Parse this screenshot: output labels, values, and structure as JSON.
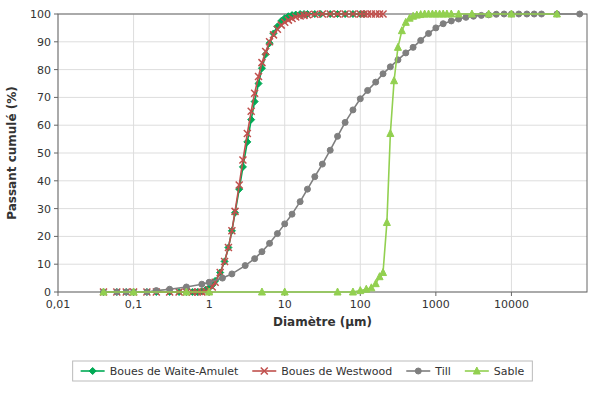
{
  "chart_data": {
    "type": "line",
    "xlabel": "Diamètre (μm)",
    "ylabel": "Passant cumulé (%)",
    "log": "x",
    "xlim": [
      0.01,
      100000
    ],
    "ylim": [
      0,
      100
    ],
    "xticks": [
      {
        "value": 0.01,
        "label": "0,01"
      },
      {
        "value": 0.1,
        "label": "0,1"
      },
      1,
      10,
      100,
      1000,
      10000
    ],
    "yticks": [
      0,
      10,
      20,
      30,
      40,
      50,
      60,
      70,
      80,
      90,
      100
    ],
    "grid": true,
    "legend": "bottom",
    "series": [
      {
        "name": "Boues de Waite-Amulet",
        "color": "#00AA55",
        "marker": "diamond",
        "x": [
          0.04,
          0.06,
          0.08,
          0.1,
          0.15,
          0.2,
          0.3,
          0.4,
          0.5,
          0.6,
          0.7,
          0.8,
          0.9,
          1.0,
          1.1,
          1.2,
          1.4,
          1.6,
          1.8,
          2.0,
          2.2,
          2.5,
          2.8,
          3.2,
          3.6,
          4.0,
          4.5,
          5.0,
          5.6,
          6.3,
          7.1,
          8.0,
          9.0,
          10.0,
          11.2,
          12.5,
          14.0,
          16.0,
          18.0,
          20.0,
          25.0,
          30.0,
          40.0,
          50.0,
          63.0,
          80.0,
          100.0,
          112.0
        ],
        "values": [
          0.0,
          0.0,
          0.0,
          0.0,
          0.0,
          0.0,
          0.0,
          0.0,
          0.0,
          0.0,
          0.0,
          0.3,
          0.8,
          1.5,
          2.5,
          4.0,
          7.0,
          11.0,
          16.0,
          22.0,
          28.5,
          37.0,
          45.0,
          54.0,
          62.0,
          68.5,
          75.0,
          80.5,
          85.5,
          89.5,
          93.0,
          95.5,
          97.5,
          98.5,
          99.2,
          99.6,
          99.8,
          100.0,
          100.0,
          100.0,
          100.0,
          100.0,
          100.0,
          100.0,
          100.0,
          100.0,
          100.0,
          100.0
        ]
      },
      {
        "name": "Boues de Westwood",
        "color": "#C0504D",
        "marker": "x",
        "x": [
          0.04,
          0.06,
          0.08,
          0.1,
          0.15,
          0.2,
          0.3,
          0.4,
          0.5,
          0.6,
          0.7,
          0.8,
          0.9,
          1.0,
          1.1,
          1.2,
          1.4,
          1.6,
          1.8,
          2.0,
          2.2,
          2.5,
          2.8,
          3.2,
          3.6,
          4.0,
          4.5,
          5.0,
          5.6,
          6.3,
          7.1,
          8.0,
          9.0,
          10.0,
          11.2,
          12.5,
          14.0,
          16.0,
          18.0,
          20.0,
          25.0,
          31.5,
          40.0,
          50.0,
          63.0,
          80.0,
          100.0,
          112.0,
          125.0,
          140.0,
          160.0,
          180.0,
          200.0
        ],
        "values": [
          0.0,
          0.0,
          0.0,
          0.0,
          0.0,
          0.0,
          0.0,
          0.0,
          0.0,
          0.0,
          0.0,
          0.0,
          0.2,
          0.8,
          1.8,
          3.5,
          7.0,
          11.0,
          16.0,
          22.0,
          29.0,
          38.5,
          47.5,
          57.0,
          65.0,
          71.5,
          77.5,
          82.5,
          86.5,
          90.0,
          92.5,
          94.5,
          96.0,
          97.0,
          97.8,
          98.4,
          98.9,
          99.3,
          99.5,
          99.7,
          99.9,
          100.0,
          100.0,
          100.0,
          100.0,
          100.0,
          100.0,
          100.0,
          100.0,
          100.0,
          100.0,
          100.0,
          100.0
        ]
      },
      {
        "name": "Till",
        "color": "#7F7F7F",
        "marker": "circle",
        "x": [
          0.04,
          0.06,
          0.08,
          0.1,
          0.15,
          0.2,
          0.3,
          0.5,
          0.8,
          1.0,
          1.5,
          2.0,
          3.0,
          4.0,
          5.0,
          6.3,
          8.0,
          10.0,
          12.5,
          16.0,
          20.0,
          25.0,
          31.5,
          40.0,
          50.0,
          63.0,
          80.0,
          100.0,
          125.0,
          160.0,
          200.0,
          250.0,
          315.0,
          400.0,
          500.0,
          630.0,
          800.0,
          1000.0,
          1250.0,
          1600.0,
          2000.0,
          2500.0,
          3150.0,
          4000.0,
          5000.0,
          6300.0,
          8000.0,
          10000.0,
          12500.0,
          16000.0,
          20000.0,
          25000.0,
          40000.0,
          80000.0
        ],
        "values": [
          0.0,
          0.0,
          0.0,
          0.0,
          0.0,
          0.5,
          1.0,
          1.8,
          2.8,
          3.5,
          5.0,
          6.5,
          9.5,
          12.0,
          14.5,
          17.5,
          21.0,
          24.5,
          28.0,
          32.5,
          37.0,
          41.5,
          46.0,
          51.0,
          56.0,
          61.0,
          65.5,
          69.5,
          72.5,
          75.5,
          78.5,
          81.0,
          83.5,
          86.0,
          88.0,
          90.5,
          93.0,
          95.0,
          96.5,
          97.5,
          98.2,
          98.8,
          99.2,
          99.5,
          99.7,
          99.9,
          100.0,
          100.0,
          100.0,
          100.0,
          100.0,
          100.0,
          100.0,
          100.0
        ]
      },
      {
        "name": "Sable",
        "color": "#92D050",
        "marker": "triangle",
        "x": [
          0.04,
          0.1,
          0.5,
          1.0,
          5.0,
          10.0,
          50.0,
          80.0,
          100.0,
          120.0,
          140.0,
          160.0,
          180.0,
          200.0,
          225.0,
          250.0,
          280.0,
          315.0,
          355.0,
          400.0,
          450.0,
          500.0,
          560.0,
          630.0,
          710.0,
          800.0,
          900.0,
          1000.0,
          1120.0,
          1250.0,
          1400.0,
          1600.0,
          2000.0,
          3000.0,
          5000.0,
          10000.0,
          40000.0
        ],
        "values": [
          0.0,
          0.0,
          0.0,
          0.0,
          0.0,
          0.0,
          0.0,
          0.0,
          0.5,
          1.0,
          1.5,
          3.0,
          5.5,
          7.0,
          25.0,
          57.0,
          76.0,
          88.0,
          94.0,
          97.0,
          98.5,
          99.2,
          99.6,
          99.8,
          100.0,
          100.0,
          100.0,
          100.0,
          100.0,
          100.0,
          100.0,
          100.0,
          100.0,
          100.0,
          100.0,
          100.0,
          100.0
        ]
      }
    ]
  }
}
